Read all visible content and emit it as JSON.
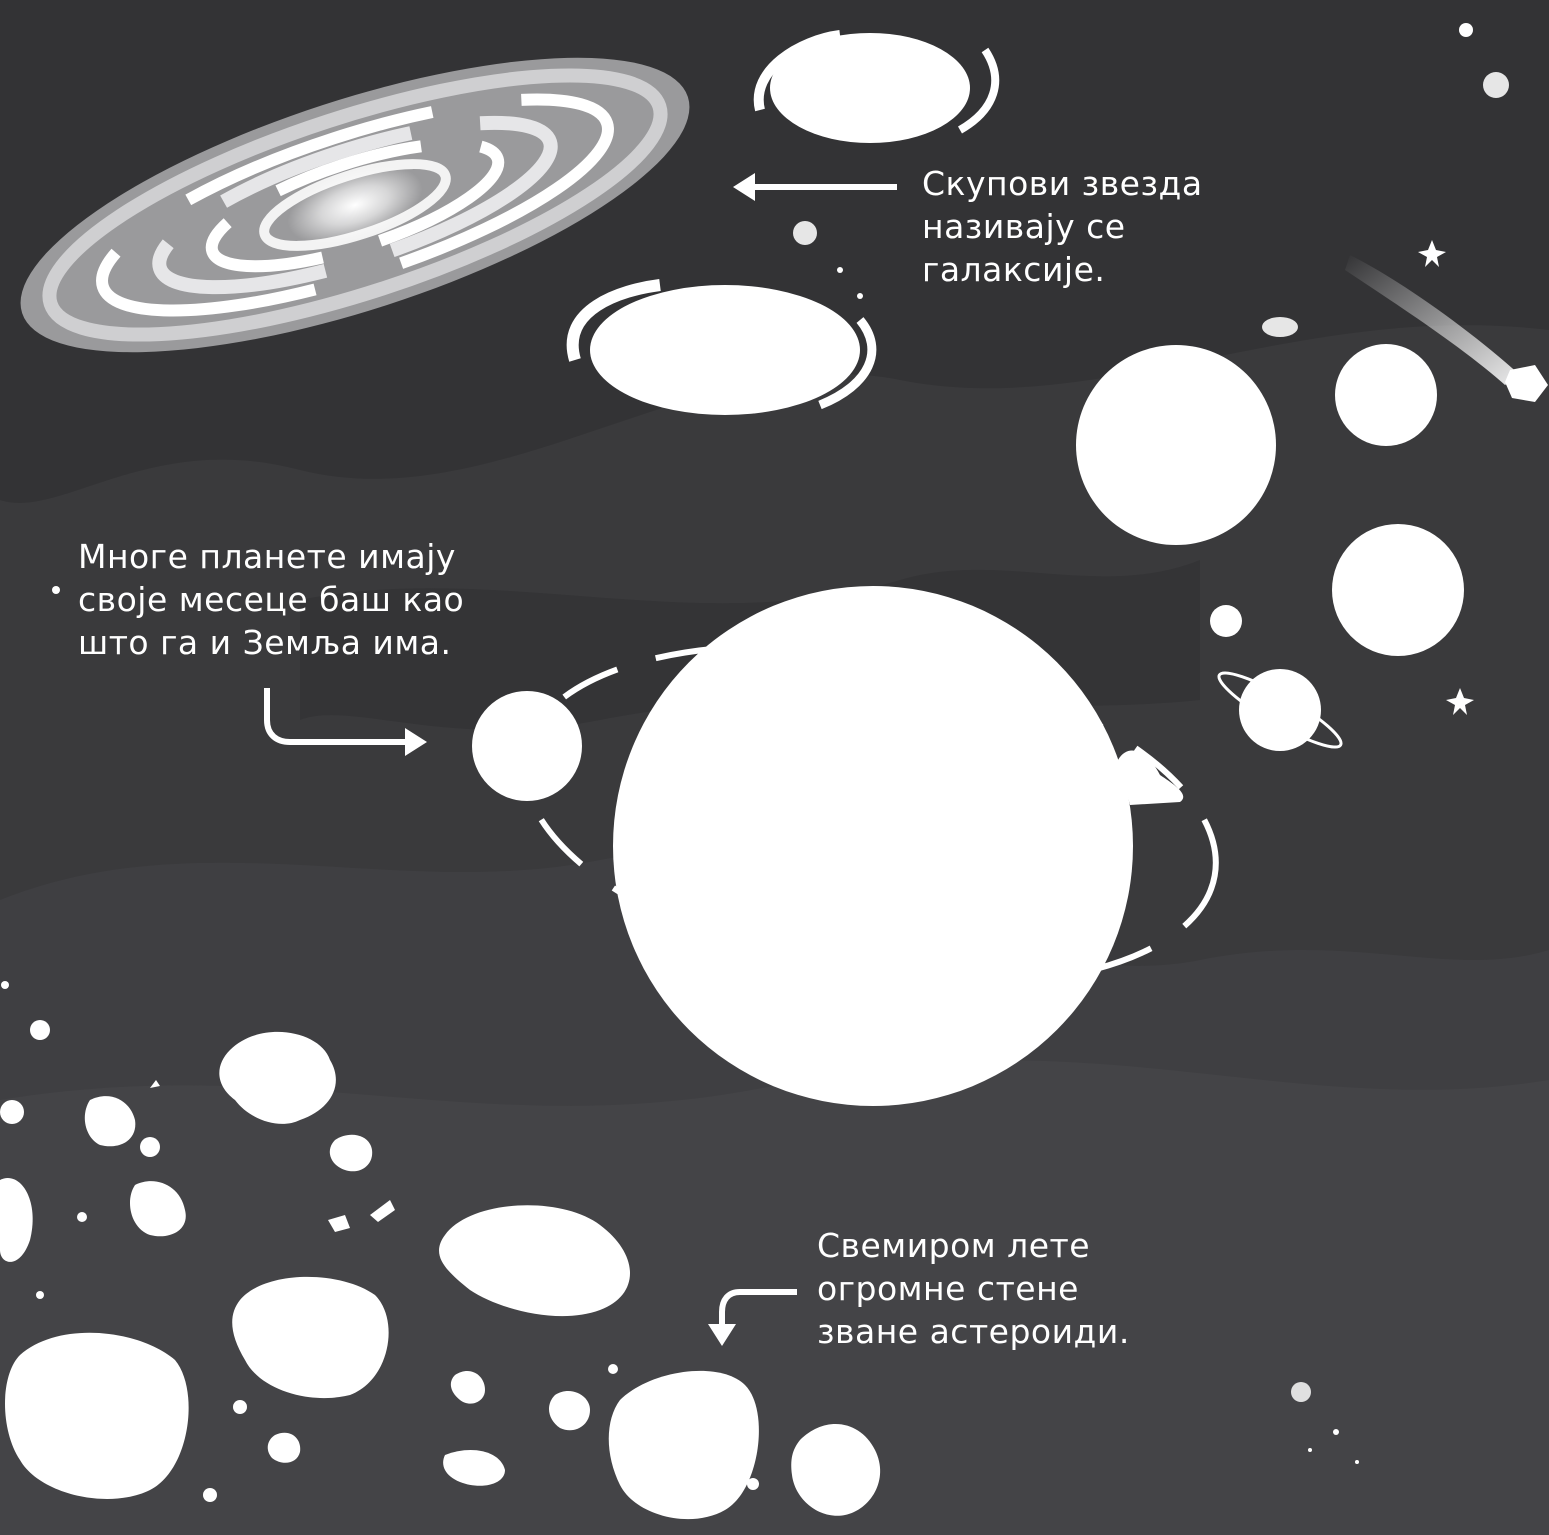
{
  "captions": {
    "galaxies": [
      "Скупови звезда",
      "називају се",
      "галаксије."
    ],
    "moons": [
      "Многе планете имају",
      "своје месеце баш као",
      "што га и Земља има."
    ],
    "asteroids": [
      "Свемиром лете",
      "огромне стене",
      "зване астероиди."
    ]
  },
  "colors": {
    "background": "#3a3a3c",
    "foreground": "#ffffff"
  },
  "icons": [
    "spiral-galaxy",
    "elliptical-galaxy",
    "comet",
    "star",
    "planet",
    "ringed-planet",
    "moon",
    "orbit",
    "asteroid",
    "arrow"
  ]
}
